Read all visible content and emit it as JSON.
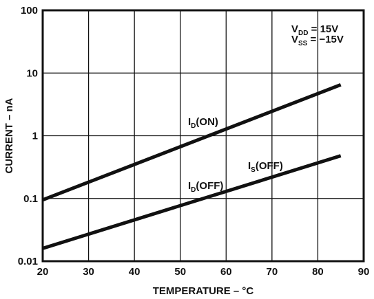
{
  "chart_data": {
    "type": "line",
    "title": "",
    "xlabel": "TEMPERATURE – °C",
    "ylabel": "CURRENT – nA",
    "xlim": [
      20,
      90
    ],
    "ylim": [
      0.01,
      100
    ],
    "yscale": "log",
    "grid": true,
    "xticks": [
      "20",
      "30",
      "40",
      "50",
      "60",
      "70",
      "80",
      "90"
    ],
    "yticks": [
      "0.01",
      "0.1",
      "1",
      "10",
      "100"
    ],
    "conditions": [
      {
        "main": "V",
        "sub": "DD",
        "rest": " = 15V"
      },
      {
        "main": "V",
        "sub": "SS",
        "rest": " = −15V"
      }
    ],
    "series": [
      {
        "name": "ID(ON)",
        "label_main": "I",
        "label_sub": "D",
        "label_rest": "(ON)",
        "x": [
          20,
          85
        ],
        "y": [
          0.095,
          6.5
        ]
      },
      {
        "name": "ID(OFF)",
        "label_main": "I",
        "label_sub": "D",
        "label_rest": "(OFF)",
        "x": [
          20,
          85
        ],
        "y": [
          0.016,
          0.48
        ]
      }
    ],
    "annotations": [
      {
        "main": "I",
        "sub": "S",
        "rest": "(OFF)",
        "series_ref": "ID(OFF)"
      }
    ]
  }
}
